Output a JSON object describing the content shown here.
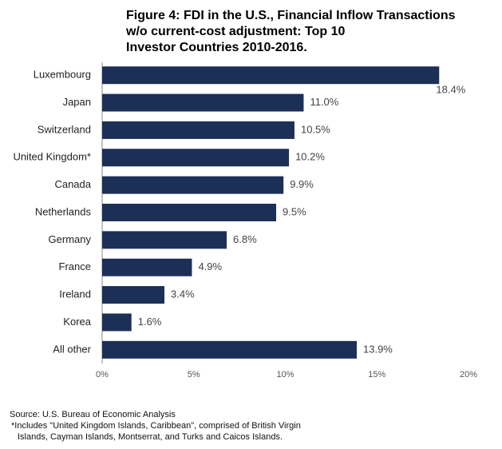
{
  "chart_data": {
    "type": "hbar",
    "title": [
      "Figure 4: FDI in the U.S., Financial Inflow Transactions",
      "w/o current-cost adjustment: Top 10",
      "Investor Countries 2010-2016."
    ],
    "categories": [
      "Luxembourg",
      "Japan",
      "Switzerland",
      "United Kingdom*",
      "Canada",
      "Netherlands",
      "Germany",
      "France",
      "Ireland",
      "Korea",
      "All other"
    ],
    "values": [
      18.4,
      11.0,
      10.5,
      10.2,
      9.9,
      9.5,
      6.8,
      4.9,
      3.4,
      1.6,
      13.9
    ],
    "value_labels": [
      "18.4%",
      "11.0%",
      "10.5%",
      "10.2%",
      "9.9%",
      "9.5%",
      "6.8%",
      "4.9%",
      "3.4%",
      "1.6%",
      "13.9%"
    ],
    "color": "#1c2f57",
    "xlim": [
      0,
      20
    ],
    "xticks": [
      {
        "value": 0,
        "label": "0%"
      },
      {
        "value": 5,
        "label": "5%"
      },
      {
        "value": 10,
        "label": "10%"
      },
      {
        "value": 15,
        "label": "15%"
      },
      {
        "value": 20,
        "label": "20%"
      }
    ],
    "grid": false,
    "source": "Source: U.S. Bureau of Economic Analysis",
    "notes": [
      "*Includes \"United Kingdom Islands, Caribbean\", comprised of British Virgin",
      "Islands, Cayman Islands, Montserrat, and Turks and Caicos Islands."
    ]
  }
}
